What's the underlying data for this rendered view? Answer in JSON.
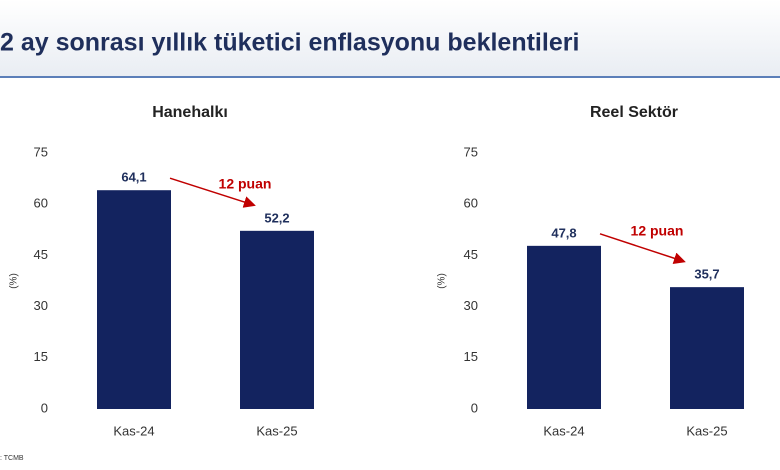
{
  "header": {
    "title": "2 ay sonrası yıllık tüketici enflasyonu beklentileri"
  },
  "source": ": TCMB",
  "chart_data": [
    {
      "type": "bar",
      "title": "Hanehalkı",
      "y_label": "(%)",
      "annotation": "12 puan",
      "categories": [
        "Kas-24",
        "Kas-25"
      ],
      "values": [
        64.1,
        52.2
      ],
      "value_labels": [
        "64,1",
        "52,2"
      ],
      "color": "#13235f",
      "ylim": [
        0,
        75
      ],
      "yticks": [
        0,
        15,
        30,
        45,
        60,
        75
      ],
      "grid": false
    },
    {
      "type": "bar",
      "title": "Reel Sektör",
      "y_label": "(%)",
      "annotation": "12 puan",
      "categories": [
        "Kas-24",
        "Kas-25"
      ],
      "values": [
        47.8,
        35.7
      ],
      "value_labels": [
        "47,8",
        "35,7"
      ],
      "color": "#13235f",
      "ylim": [
        0,
        75
      ],
      "yticks": [
        0,
        15,
        30,
        45,
        60,
        75
      ],
      "grid": false
    }
  ]
}
